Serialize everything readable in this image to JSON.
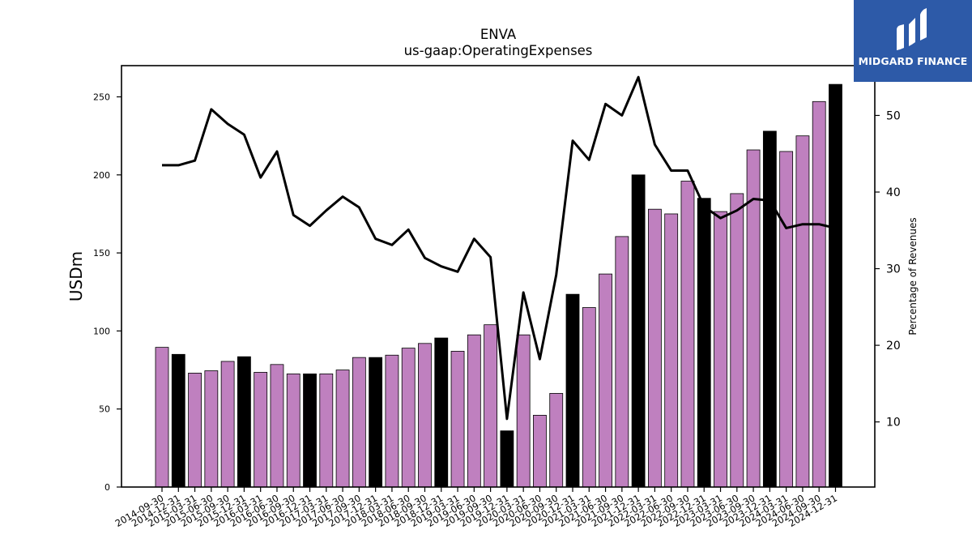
{
  "brand": {
    "logo_text": "MIDGARD FINANCE",
    "logo_color": "#2d5aa8"
  },
  "chart_data": {
    "type": "bar",
    "title": "ENVA",
    "subtitle": "us-gaap:OperatingExpenses",
    "ylabel": "USDm",
    "y2label": "Percentage of Revenues",
    "ylim": [
      0,
      270
    ],
    "y2lim": [
      1.5,
      56.5
    ],
    "yticks": [
      0,
      50,
      100,
      150,
      200,
      250
    ],
    "y2ticks": [
      10,
      20,
      30,
      40,
      50
    ],
    "grid": false,
    "colors": {
      "quarter_bar": "#bf80bf",
      "year_end_bar": "#000000",
      "line": "#000000"
    },
    "categories": [
      "2014-09-30",
      "2014-12-31",
      "2015-03-31",
      "2015-06-30",
      "2015-09-30",
      "2015-12-31",
      "2016-03-31",
      "2016-06-30",
      "2016-09-30",
      "2016-12-31",
      "2017-03-31",
      "2017-06-30",
      "2017-09-30",
      "2017-12-31",
      "2018-03-31",
      "2018-06-30",
      "2018-09-30",
      "2018-12-31",
      "2019-03-31",
      "2019-06-30",
      "2019-09-30",
      "2019-12-31",
      "2020-03-31",
      "2020-06-30",
      "2020-09-30",
      "2020-12-31",
      "2021-03-31",
      "2021-06-30",
      "2021-09-30",
      "2021-12-31",
      "2022-03-31",
      "2022-06-30",
      "2022-09-30",
      "2022-12-31",
      "2023-03-31",
      "2023-06-30",
      "2023-09-30",
      "2023-12-31",
      "2024-03-31",
      "2024-06-30",
      "2024-09-30",
      "2024-12-31"
    ],
    "series": [
      {
        "type": "bar",
        "axis": "left",
        "values": [
          89.5,
          85,
          73,
          74.5,
          80.5,
          83.5,
          73.5,
          78.5,
          72.5,
          72.5,
          72.5,
          75,
          83,
          83,
          84.5,
          89,
          92,
          95.5,
          87,
          97.5,
          104,
          36,
          97.5,
          46,
          60,
          123.5,
          115,
          136.5,
          160.5,
          200,
          178,
          175,
          196,
          185,
          176.5,
          188,
          216,
          228,
          215,
          225,
          247,
          258
        ]
      },
      {
        "type": "line",
        "axis": "right",
        "values": [
          43.5,
          43.5,
          44.1,
          50.8,
          48.9,
          47.5,
          41.9,
          45.3,
          37.0,
          35.6,
          37.6,
          39.4,
          38.0,
          33.9,
          33.1,
          35.1,
          31.4,
          30.3,
          29.6,
          33.9,
          31.5,
          10.4,
          26.9,
          18.2,
          29.2,
          46.7,
          44.2,
          51.5,
          50.0,
          55.0,
          46.2,
          42.8,
          42.8,
          38.1,
          36.6,
          37.6,
          39.1,
          38.9,
          35.3,
          35.8,
          35.8,
          35.3
        ]
      }
    ]
  }
}
